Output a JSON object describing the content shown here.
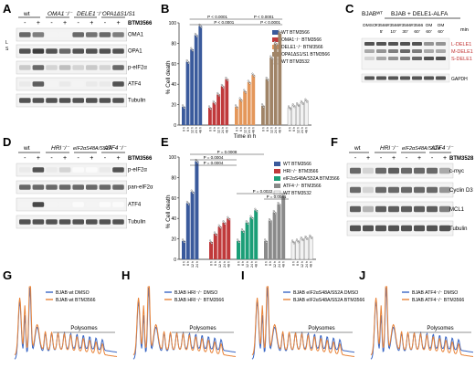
{
  "panels": [
    "A",
    "B",
    "C",
    "D",
    "E",
    "F",
    "G",
    "H",
    "I",
    "J"
  ],
  "panel_A": {
    "lanes": [
      "wt",
      "OMA1⁻/⁻",
      "DELE1⁻/⁻",
      "OPA1ΔS1/S1"
    ],
    "treat_label": "BTM3566",
    "signs": [
      "-",
      "+",
      "-",
      "+",
      "-",
      "+",
      "-",
      "+"
    ],
    "bands": [
      "OMA1",
      "OPA1",
      "p-eIF2α",
      "ATF4",
      "Tubulin"
    ],
    "opa1_marks": [
      "L",
      "S"
    ]
  },
  "panel_C": {
    "title": "BJAB + DELE1-ALFA",
    "prefix": "BJABᵂᵀ",
    "conds": [
      "DMSO",
      "#3566",
      "#3566",
      "#3566",
      "#3566",
      "OM",
      "OM"
    ],
    "times": [
      "",
      "5'",
      "10'",
      "30'",
      "60'",
      "60'",
      "60'"
    ],
    "unit": "min",
    "bands": [
      "L-DELE1",
      "M-DELE1",
      "S-DELE1"
    ],
    "loading": "GAPDH"
  },
  "panel_D": {
    "lanes": [
      "wt",
      "HRI⁻/⁻",
      "eIF2αS48A/S52A",
      "ATF4⁻/⁻"
    ],
    "treat_label": "BTM3566",
    "signs": [
      "-",
      "+",
      "-",
      "+",
      "-",
      "+",
      "-",
      "+"
    ],
    "bands": [
      "p-eIF2α",
      "pan-eIF2α",
      "ATF4",
      "Tubulin"
    ]
  },
  "panel_F": {
    "lanes": [
      "wt",
      "HRI⁻/⁻",
      "eIF2αS48A/S52A",
      "ATF4⁻/⁻"
    ],
    "treat_label": "BTM3528",
    "signs": [
      "-",
      "+",
      "-",
      "+",
      "-",
      "+",
      "-",
      "+"
    ],
    "bands": [
      "c-myc",
      "Cyclin D3",
      "MCL1",
      "Tubulin"
    ]
  },
  "chart_data": [
    {
      "panel": "B",
      "type": "bar",
      "ylabel": "% Cell death",
      "xlabel": "Time in h",
      "ylim": [
        0,
        100
      ],
      "yticks": [
        0,
        20,
        40,
        60,
        80,
        100
      ],
      "xtick_labels": [
        "0 h",
        "6 h",
        "12 h",
        "24 h",
        "48 h"
      ],
      "series": [
        {
          "name": "WT BTM3566",
          "values": [
            18,
            62,
            74,
            88,
            97
          ],
          "color": "#3a5a9c"
        },
        {
          "name": "OMA1⁻/⁻ BTM3566",
          "values": [
            17,
            22,
            30,
            38,
            45
          ],
          "color": "#c0393b"
        },
        {
          "name": "DELE1⁻/⁻ BTM3566",
          "values": [
            18,
            25,
            33,
            42,
            49
          ],
          "color": "#e4975a"
        },
        {
          "name": "OPA1ΔS1/S1 BTM3566",
          "values": [
            19,
            45,
            66,
            80,
            91
          ],
          "color": "#a08467"
        },
        {
          "name": "WT BTM3532",
          "values": [
            17,
            19,
            20,
            22,
            24
          ],
          "color": "#f2f2f2"
        }
      ],
      "significance": [
        {
          "text": "P < 0.0001"
        },
        {
          "text": "P < 0.0001"
        },
        {
          "text": "P < 0.0001"
        },
        {
          "text": "P < 0.0001"
        }
      ]
    },
    {
      "panel": "E",
      "type": "bar",
      "ylabel": "% Cell death",
      "ylim": [
        0,
        100
      ],
      "yticks": [
        0,
        20,
        40,
        60,
        80,
        100
      ],
      "xtick_labels": [
        "0 h",
        "6 h",
        "12 h",
        "24 h",
        "48 h"
      ],
      "series": [
        {
          "name": "WT BTM3566",
          "values": [
            18,
            55,
            66,
            96,
            0
          ],
          "color": "#3a5a9c"
        },
        {
          "name": "HRI⁻/⁻ BTM3566",
          "values": [
            17,
            25,
            32,
            36,
            40
          ],
          "color": "#c0393b"
        },
        {
          "name": "eIF2αS48A/S52A BTM3566",
          "values": [
            18,
            28,
            36,
            41,
            48
          ],
          "color": "#1b9e77"
        },
        {
          "name": "ATF4⁻/⁻ BTM3566",
          "values": [
            18,
            38,
            46,
            54,
            62
          ],
          "color": "#8a8a8a"
        },
        {
          "name": "WT BTM3532",
          "values": [
            17,
            18,
            20,
            21,
            22
          ],
          "color": "#f2f2f2"
        }
      ],
      "significance": [
        {
          "text": "P = 0.0008"
        },
        {
          "text": "P = 0.0004"
        },
        {
          "text": "P = 0.0004"
        },
        {
          "text": "P = 0.0022"
        },
        {
          "text": "P = 0.0041"
        }
      ]
    }
  ],
  "polysome": {
    "x_label": "Polysomes",
    "profiles": [
      {
        "panel": "G",
        "legend": [
          "BJAB wt DMSO",
          "BJAB wt BTM3566"
        ]
      },
      {
        "panel": "H",
        "legend": [
          "BJAB HRI⁻/⁻ DMSO",
          "BJAB HRI⁻/⁻ BTM3566"
        ]
      },
      {
        "panel": "I",
        "legend": [
          "BJAB eIF2αS48A/S52A DMSO",
          "BJAB eIF2αS48A/S52A BTM3566"
        ]
      },
      {
        "panel": "J",
        "legend": [
          "BJAB ATF4⁻/⁻ DMSO",
          "BJAB ATF4⁻/⁻ BTM3566"
        ]
      }
    ],
    "colors": {
      "dmso": "#3a66c4",
      "treated": "#e8843a"
    }
  }
}
